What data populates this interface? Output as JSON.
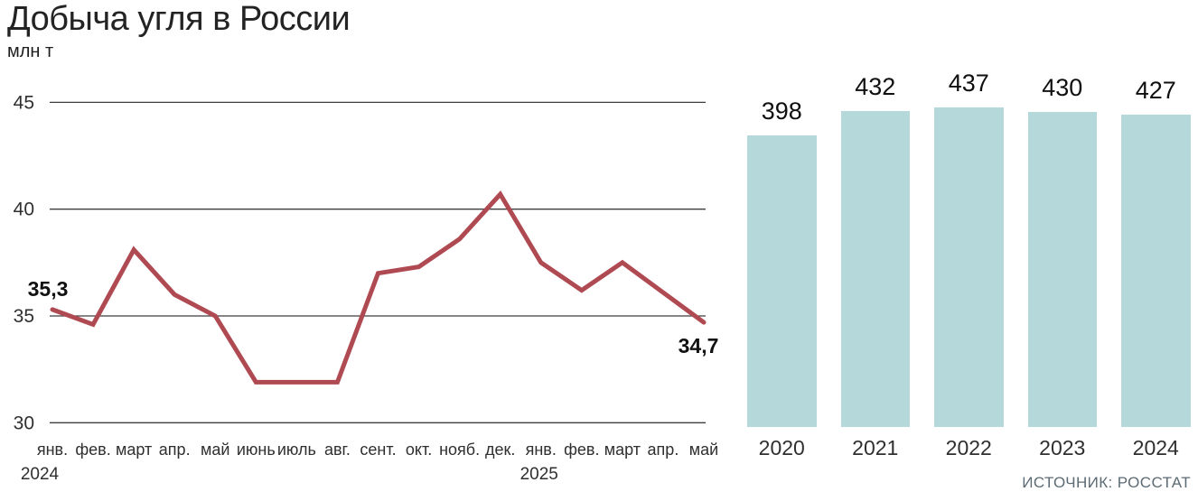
{
  "header": {
    "title": "Добыча угля в России",
    "unit": "млн т"
  },
  "footer": {
    "source": "ИСТОЧНИК: РОССТАТ"
  },
  "chart_data": [
    {
      "type": "line",
      "title": "Добыча угля в России, помесячно",
      "ylabel": "млн т",
      "x": [
        "янв.",
        "фев.",
        "март",
        "апр.",
        "май",
        "июнь",
        "июль",
        "авг.",
        "сент.",
        "окт.",
        "нояб.",
        "дек.",
        "янв.",
        "фев.",
        "март",
        "апр.",
        "май"
      ],
      "year_markers": [
        {
          "label": "2024",
          "index": 0
        },
        {
          "label": "2025",
          "index": 12
        }
      ],
      "values": [
        35.3,
        34.6,
        38.1,
        36.0,
        35.0,
        31.9,
        31.9,
        31.9,
        37.0,
        37.3,
        38.6,
        40.7,
        37.5,
        36.2,
        37.5,
        36.1,
        34.7
      ],
      "point_labels": [
        {
          "index": 0,
          "text": "35,3"
        },
        {
          "index": 16,
          "text": "34,7"
        }
      ],
      "yticks": [
        30,
        35,
        40,
        45
      ],
      "ylim": [
        29.7,
        45.8
      ],
      "grid": true,
      "legend": "none",
      "line_color": "#b04a52",
      "grid_color": "#3d3d3d",
      "tick_label_color": "#2f2f2f"
    },
    {
      "type": "bar",
      "title": "Добыча угля в России, по годам",
      "categories": [
        "2020",
        "2021",
        "2022",
        "2023",
        "2024"
      ],
      "values": [
        398,
        432,
        437,
        430,
        427
      ],
      "ylim": [
        0,
        450
      ],
      "grid": false,
      "legend": "none",
      "bar_color": "#b5d9da",
      "value_label_color": "#101010"
    }
  ]
}
